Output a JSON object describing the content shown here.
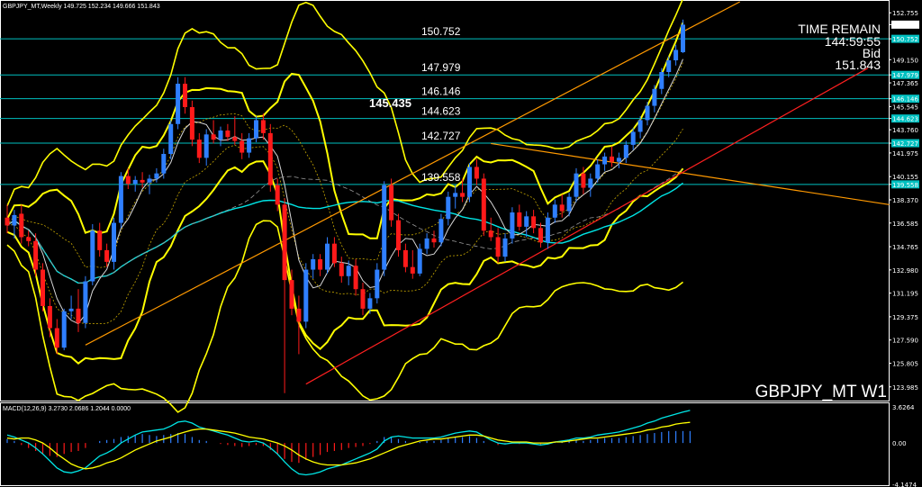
{
  "header": {
    "symbol_info": "GBPJPY_MT,Weekly  149.725 152.234 149.666 151.843"
  },
  "watermark": "GBPJPY_MT W1",
  "info_panel": {
    "line1": "TIME REMAIN",
    "line2": "144:59:55",
    "line3": "Bid",
    "line4": "151.843"
  },
  "macd_label": "MACD(12,26,9) 3.2730 2.0686 1.2044 0.0000",
  "colors": {
    "bull": "#2f7fff",
    "bear": "#ff1a1a",
    "bollinger": "#ffff00",
    "ma_cyan": "#00e5e5",
    "ma_white": "#d8d8d8",
    "trend_orange": "#ff9900",
    "trend_red": "#ff2020",
    "level_line": "#00c0c0"
  },
  "chart_data": {
    "type": "candlestick",
    "symbol": "GBPJPY_MT",
    "timeframe": "W1",
    "ylim": [
      123.0,
      153.6
    ],
    "y_ticks": [
      152.755,
      151.843,
      150.752,
      149.15,
      147.979,
      147.365,
      146.146,
      145.545,
      144.623,
      143.76,
      142.727,
      141.975,
      140.155,
      139.558,
      138.37,
      136.585,
      134.765,
      132.98,
      131.195,
      129.375,
      127.59,
      125.805,
      123.985
    ],
    "y_tick_labels": [
      "152.755",
      "151.843",
      "150.752",
      "149.150",
      "147.979",
      "147.365",
      "146.146",
      "145.545",
      "144.623",
      "143.760",
      "142.727",
      "141.975",
      "140.155",
      "139.558",
      "138.370",
      "136.585",
      "134.765",
      "132.980",
      "131.195",
      "129.375",
      "127.590",
      "125.805",
      "123.985"
    ],
    "highlighted_levels": [
      {
        "value": 151.843,
        "label": "151.843"
      },
      {
        "value": 150.752,
        "label": "150.752"
      },
      {
        "value": 147.979,
        "label": "147.979"
      },
      {
        "value": 146.146,
        "label": "146.146"
      },
      {
        "value": 144.623,
        "label": "144.623"
      },
      {
        "value": 142.727,
        "label": "142.727"
      },
      {
        "value": 139.558,
        "label": "139.558"
      }
    ],
    "level_annotations": [
      {
        "value": 150.752,
        "label": "150.752"
      },
      {
        "value": 147.979,
        "label": "147.979"
      },
      {
        "value": 146.146,
        "label": "146.146"
      },
      {
        "value": 144.623,
        "label": "144.623"
      },
      {
        "value": 142.727,
        "label": "142.727"
      },
      {
        "value": 139.558,
        "label": "139.558"
      }
    ],
    "highlight_annotation": {
      "value": 145.435,
      "label": "145.435"
    },
    "candles": [
      {
        "o": 137.0,
        "h": 138.0,
        "l": 135.8,
        "c": 136.4
      },
      {
        "o": 136.4,
        "h": 137.6,
        "l": 135.4,
        "c": 137.2
      },
      {
        "o": 137.3,
        "h": 138.0,
        "l": 135.0,
        "c": 135.5
      },
      {
        "o": 135.5,
        "h": 136.0,
        "l": 134.8,
        "c": 135.2
      },
      {
        "o": 135.2,
        "h": 135.8,
        "l": 132.5,
        "c": 133.0
      },
      {
        "o": 133.0,
        "h": 133.5,
        "l": 129.8,
        "c": 130.2
      },
      {
        "o": 130.2,
        "h": 130.8,
        "l": 127.8,
        "c": 128.5
      },
      {
        "o": 128.5,
        "h": 129.2,
        "l": 126.5,
        "c": 127.0
      },
      {
        "o": 127.0,
        "h": 130.0,
        "l": 126.8,
        "c": 129.8
      },
      {
        "o": 129.8,
        "h": 131.0,
        "l": 129.2,
        "c": 130.0
      },
      {
        "o": 130.0,
        "h": 131.5,
        "l": 128.2,
        "c": 128.9
      },
      {
        "o": 128.9,
        "h": 132.5,
        "l": 128.5,
        "c": 132.1
      },
      {
        "o": 132.1,
        "h": 136.5,
        "l": 131.8,
        "c": 136.0
      },
      {
        "o": 136.0,
        "h": 136.6,
        "l": 134.0,
        "c": 134.5
      },
      {
        "o": 134.5,
        "h": 135.0,
        "l": 133.2,
        "c": 133.6
      },
      {
        "o": 133.6,
        "h": 137.0,
        "l": 133.0,
        "c": 136.6
      },
      {
        "o": 136.6,
        "h": 140.5,
        "l": 136.2,
        "c": 140.2
      },
      {
        "o": 140.2,
        "h": 140.8,
        "l": 139.2,
        "c": 139.6
      },
      {
        "o": 139.6,
        "h": 140.2,
        "l": 139.0,
        "c": 139.9
      },
      {
        "o": 139.9,
        "h": 140.5,
        "l": 139.3,
        "c": 139.7
      },
      {
        "o": 139.7,
        "h": 140.3,
        "l": 138.8,
        "c": 140.0
      },
      {
        "o": 140.0,
        "h": 140.8,
        "l": 139.7,
        "c": 140.4
      },
      {
        "o": 140.4,
        "h": 142.3,
        "l": 140.0,
        "c": 141.9
      },
      {
        "o": 141.9,
        "h": 144.5,
        "l": 141.5,
        "c": 144.2
      },
      {
        "o": 144.2,
        "h": 147.8,
        "l": 143.8,
        "c": 147.3
      },
      {
        "o": 147.3,
        "h": 147.8,
        "l": 145.0,
        "c": 145.5
      },
      {
        "o": 145.5,
        "h": 146.0,
        "l": 142.5,
        "c": 143.0
      },
      {
        "o": 143.0,
        "h": 143.5,
        "l": 141.2,
        "c": 141.6
      },
      {
        "o": 141.6,
        "h": 143.8,
        "l": 141.0,
        "c": 143.4
      },
      {
        "o": 143.4,
        "h": 144.5,
        "l": 142.7,
        "c": 143.0
      },
      {
        "o": 143.0,
        "h": 144.0,
        "l": 142.5,
        "c": 143.7
      },
      {
        "o": 143.7,
        "h": 144.2,
        "l": 142.9,
        "c": 143.2
      },
      {
        "o": 143.2,
        "h": 144.8,
        "l": 142.6,
        "c": 142.9
      },
      {
        "o": 142.9,
        "h": 143.5,
        "l": 141.5,
        "c": 142.0
      },
      {
        "o": 142.0,
        "h": 143.5,
        "l": 141.6,
        "c": 143.1
      },
      {
        "o": 143.1,
        "h": 144.8,
        "l": 142.8,
        "c": 144.5
      },
      {
        "o": 144.5,
        "h": 145.0,
        "l": 143.0,
        "c": 143.5
      },
      {
        "o": 143.5,
        "h": 144.2,
        "l": 139.0,
        "c": 139.5
      },
      {
        "o": 139.5,
        "h": 140.0,
        "l": 137.5,
        "c": 138.0
      },
      {
        "o": 138.0,
        "h": 138.5,
        "l": 123.5,
        "c": 132.2
      },
      {
        "o": 132.2,
        "h": 133.0,
        "l": 129.5,
        "c": 130.0
      },
      {
        "o": 130.0,
        "h": 131.0,
        "l": 126.5,
        "c": 129.0
      },
      {
        "o": 129.0,
        "h": 133.5,
        "l": 128.5,
        "c": 133.0
      },
      {
        "o": 133.0,
        "h": 134.2,
        "l": 132.3,
        "c": 133.8
      },
      {
        "o": 133.8,
        "h": 134.2,
        "l": 132.5,
        "c": 133.0
      },
      {
        "o": 133.0,
        "h": 135.5,
        "l": 132.7,
        "c": 135.0
      },
      {
        "o": 135.0,
        "h": 135.5,
        "l": 133.2,
        "c": 133.5
      },
      {
        "o": 133.5,
        "h": 134.0,
        "l": 132.0,
        "c": 132.5
      },
      {
        "o": 132.5,
        "h": 133.7,
        "l": 131.8,
        "c": 133.3
      },
      {
        "o": 133.3,
        "h": 133.8,
        "l": 131.0,
        "c": 131.5
      },
      {
        "o": 131.5,
        "h": 132.0,
        "l": 129.5,
        "c": 130.0
      },
      {
        "o": 130.0,
        "h": 131.2,
        "l": 129.6,
        "c": 130.8
      },
      {
        "o": 130.8,
        "h": 133.5,
        "l": 130.4,
        "c": 133.0
      },
      {
        "o": 133.0,
        "h": 139.8,
        "l": 132.5,
        "c": 139.5
      },
      {
        "o": 139.5,
        "h": 140.0,
        "l": 136.3,
        "c": 136.8
      },
      {
        "o": 136.8,
        "h": 137.3,
        "l": 134.0,
        "c": 134.5
      },
      {
        "o": 134.5,
        "h": 135.0,
        "l": 132.8,
        "c": 133.2
      },
      {
        "o": 133.2,
        "h": 134.5,
        "l": 132.3,
        "c": 132.7
      },
      {
        "o": 132.7,
        "h": 135.0,
        "l": 132.5,
        "c": 134.6
      },
      {
        "o": 134.6,
        "h": 135.8,
        "l": 134.2,
        "c": 135.4
      },
      {
        "o": 135.4,
        "h": 136.0,
        "l": 134.7,
        "c": 135.1
      },
      {
        "o": 135.1,
        "h": 137.3,
        "l": 134.8,
        "c": 136.9
      },
      {
        "o": 136.9,
        "h": 139.0,
        "l": 136.4,
        "c": 138.6
      },
      {
        "o": 138.6,
        "h": 139.5,
        "l": 137.7,
        "c": 138.9
      },
      {
        "o": 138.9,
        "h": 140.0,
        "l": 138.2,
        "c": 138.6
      },
      {
        "o": 138.6,
        "h": 141.2,
        "l": 138.2,
        "c": 140.9
      },
      {
        "o": 140.9,
        "h": 141.5,
        "l": 139.5,
        "c": 140.0
      },
      {
        "o": 140.0,
        "h": 140.4,
        "l": 135.6,
        "c": 136.0
      },
      {
        "o": 136.0,
        "h": 137.0,
        "l": 135.2,
        "c": 135.5
      },
      {
        "o": 135.5,
        "h": 136.2,
        "l": 133.5,
        "c": 134.0
      },
      {
        "o": 134.0,
        "h": 135.8,
        "l": 133.6,
        "c": 135.4
      },
      {
        "o": 135.4,
        "h": 137.8,
        "l": 135.0,
        "c": 137.4
      },
      {
        "o": 137.4,
        "h": 138.0,
        "l": 136.0,
        "c": 136.3
      },
      {
        "o": 136.3,
        "h": 137.5,
        "l": 135.5,
        "c": 137.1
      },
      {
        "o": 137.1,
        "h": 137.6,
        "l": 135.8,
        "c": 136.2
      },
      {
        "o": 136.2,
        "h": 136.6,
        "l": 134.7,
        "c": 135.1
      },
      {
        "o": 135.1,
        "h": 137.4,
        "l": 134.6,
        "c": 137.0
      },
      {
        "o": 137.0,
        "h": 138.4,
        "l": 136.6,
        "c": 138.0
      },
      {
        "o": 138.0,
        "h": 138.8,
        "l": 137.0,
        "c": 137.5
      },
      {
        "o": 137.5,
        "h": 138.9,
        "l": 137.1,
        "c": 138.6
      },
      {
        "o": 138.6,
        "h": 140.8,
        "l": 138.2,
        "c": 140.4
      },
      {
        "o": 140.4,
        "h": 140.9,
        "l": 138.8,
        "c": 139.3
      },
      {
        "o": 139.3,
        "h": 140.4,
        "l": 138.6,
        "c": 140.0
      },
      {
        "o": 140.0,
        "h": 141.5,
        "l": 139.7,
        "c": 141.1
      },
      {
        "o": 141.1,
        "h": 142.0,
        "l": 140.6,
        "c": 141.7
      },
      {
        "o": 141.7,
        "h": 142.5,
        "l": 140.9,
        "c": 141.3
      },
      {
        "o": 141.3,
        "h": 142.0,
        "l": 140.8,
        "c": 141.6
      },
      {
        "o": 141.6,
        "h": 142.9,
        "l": 141.2,
        "c": 142.6
      },
      {
        "o": 142.6,
        "h": 143.9,
        "l": 142.2,
        "c": 143.6
      },
      {
        "o": 143.6,
        "h": 144.8,
        "l": 143.1,
        "c": 144.5
      },
      {
        "o": 144.5,
        "h": 145.9,
        "l": 144.1,
        "c": 145.6
      },
      {
        "o": 145.6,
        "h": 147.2,
        "l": 145.1,
        "c": 146.9
      },
      {
        "o": 146.9,
        "h": 148.5,
        "l": 146.5,
        "c": 148.2
      },
      {
        "o": 148.2,
        "h": 149.4,
        "l": 147.8,
        "c": 149.1
      },
      {
        "o": 149.1,
        "h": 150.3,
        "l": 148.7,
        "c": 149.9
      },
      {
        "o": 149.725,
        "h": 152.234,
        "l": 149.666,
        "c": 151.843
      }
    ],
    "macd": {
      "label": "MACD(12,26,9) 3.2730 2.0686 1.2044 0.0000",
      "ylim": [
        -4.1474,
        3.6264
      ],
      "y_ticks": [
        3.6264,
        0.0,
        -4.1474
      ],
      "y_tick_labels": [
        "3.6264",
        "0.00",
        "-4.1474"
      ],
      "histogram": [
        0.4,
        0.2,
        -0.2,
        -0.5,
        -0.8,
        -1.1,
        -1.3,
        -1.4,
        -1.1,
        -0.9,
        -0.8,
        -0.5,
        0.0,
        0.2,
        0.3,
        0.4,
        0.6,
        0.7,
        0.8,
        0.9,
        0.8,
        0.7,
        0.8,
        0.9,
        1.0,
        0.9,
        0.6,
        0.3,
        0.2,
        0.0,
        -0.1,
        -0.2,
        -0.3,
        -0.4,
        -0.3,
        -0.2,
        -0.3,
        -0.7,
        -1.1,
        -1.6,
        -1.9,
        -2.0,
        -1.7,
        -1.4,
        -1.2,
        -0.9,
        -0.8,
        -0.7,
        -0.5,
        -0.4,
        -0.3,
        -0.1,
        0.2,
        0.6,
        0.6,
        0.4,
        0.2,
        0.0,
        0.1,
        0.2,
        0.2,
        0.3,
        0.5,
        0.6,
        0.6,
        0.7,
        0.5,
        0.2,
        0.0,
        -0.2,
        -0.1,
        0.0,
        -0.1,
        0.0,
        -0.1,
        -0.2,
        -0.1,
        0.1,
        0.1,
        0.2,
        0.3,
        0.2,
        0.3,
        0.4,
        0.5,
        0.5,
        0.5,
        0.6,
        0.7,
        0.8,
        0.9,
        1.0,
        1.1,
        1.2,
        1.2,
        1.2,
        1.2
      ],
      "macd_line": [
        0.8,
        0.6,
        0.3,
        0.0,
        -0.5,
        -1.1,
        -1.8,
        -2.5,
        -2.9,
        -3.0,
        -2.8,
        -2.5,
        -1.9,
        -1.3,
        -1.0,
        -0.6,
        0.0,
        0.4,
        0.8,
        1.1,
        1.2,
        1.3,
        1.4,
        1.7,
        2.1,
        2.2,
        2.0,
        1.6,
        1.4,
        1.2,
        1.0,
        0.8,
        0.5,
        0.2,
        0.1,
        0.2,
        0.0,
        -0.5,
        -1.1,
        -1.9,
        -2.6,
        -3.1,
        -3.2,
        -3.1,
        -2.9,
        -2.6,
        -2.4,
        -2.2,
        -1.9,
        -1.6,
        -1.3,
        -1.0,
        -0.6,
        0.2,
        0.6,
        0.7,
        0.6,
        0.5,
        0.5,
        0.5,
        0.5,
        0.6,
        0.8,
        1.0,
        1.1,
        1.2,
        1.1,
        0.7,
        0.3,
        0.0,
        -0.1,
        0.0,
        0.0,
        0.0,
        -0.1,
        -0.2,
        -0.1,
        0.1,
        0.2,
        0.3,
        0.5,
        0.5,
        0.6,
        0.8,
        0.9,
        1.0,
        1.1,
        1.3,
        1.5,
        1.7,
        2.0,
        2.2,
        2.5,
        2.7,
        2.9,
        3.1,
        3.27
      ],
      "signal_line": [
        0.5,
        0.4,
        0.5,
        0.5,
        0.3,
        0.0,
        -0.5,
        -1.1,
        -1.6,
        -2.1,
        -2.4,
        -2.6,
        -2.5,
        -2.3,
        -2.0,
        -1.8,
        -1.5,
        -1.1,
        -0.7,
        -0.4,
        -0.1,
        0.2,
        0.4,
        0.6,
        0.9,
        1.1,
        1.3,
        1.4,
        1.4,
        1.3,
        1.2,
        1.1,
        1.0,
        0.8,
        0.6,
        0.5,
        0.4,
        0.2,
        0.0,
        -0.3,
        -0.7,
        -1.2,
        -1.6,
        -1.9,
        -2.1,
        -2.2,
        -2.2,
        -2.2,
        -2.1,
        -2.0,
        -1.8,
        -1.6,
        -1.3,
        -1.0,
        -0.7,
        -0.4,
        -0.2,
        0.0,
        0.2,
        0.3,
        0.4,
        0.4,
        0.5,
        0.6,
        0.7,
        0.8,
        0.8,
        0.7,
        0.5,
        0.3,
        0.2,
        0.1,
        0.1,
        0.1,
        0.0,
        0.0,
        0.0,
        0.1,
        0.1,
        0.2,
        0.3,
        0.4,
        0.5,
        0.5,
        0.6,
        0.7,
        0.8,
        0.9,
        1.0,
        1.1,
        1.3,
        1.4,
        1.6,
        1.7,
        1.9,
        2.0,
        2.07
      ]
    }
  }
}
